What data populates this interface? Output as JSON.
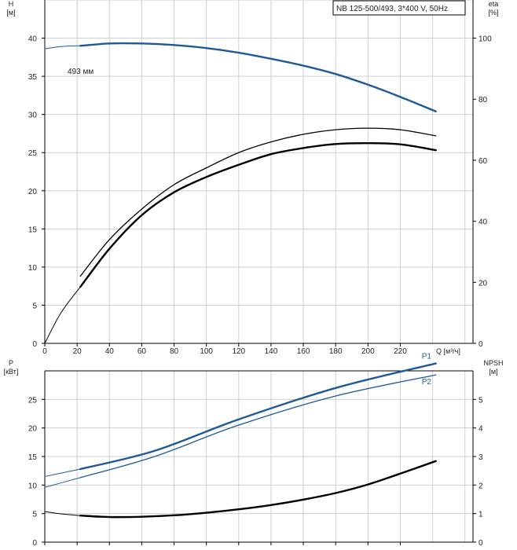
{
  "title_box": "NB 125-500/493, 3*400 V, 50Hz",
  "colors": {
    "blue": "#1f5a96",
    "black": "#000000",
    "grid": "#cfcfcf",
    "axis": "#000000"
  },
  "chart_data": [
    {
      "type": "line",
      "panel": "top",
      "left_axis": {
        "label": [
          "H",
          "[м]"
        ],
        "ylim": [
          0,
          45
        ],
        "ticks": [
          0,
          5,
          10,
          15,
          20,
          25,
          30,
          35,
          40
        ]
      },
      "right_axis": {
        "label": [
          "eta",
          "[%]"
        ],
        "ylim": [
          0,
          112.5
        ],
        "ticks": [
          0,
          20,
          40,
          60,
          80,
          100
        ]
      },
      "x_axis": {
        "label": "Q [м³/ч]",
        "xlim": [
          0,
          265
        ],
        "ticks": [
          0,
          20,
          40,
          60,
          80,
          100,
          120,
          140,
          160,
          180,
          200,
          220
        ]
      },
      "grid": true,
      "curve_label": "493 мм",
      "series": [
        {
          "id": "H_ext",
          "axis": "left",
          "color": "#1f5a96",
          "width": 1,
          "x": [
            0,
            10,
            22
          ],
          "y": [
            38.6,
            38.9,
            39.0
          ]
        },
        {
          "id": "H",
          "axis": "left",
          "color": "#1f5a96",
          "width": 2.4,
          "x": [
            22,
            40,
            60,
            80,
            100,
            120,
            140,
            160,
            180,
            200,
            220,
            242
          ],
          "y": [
            39.0,
            39.3,
            39.3,
            39.1,
            38.7,
            38.1,
            37.3,
            36.4,
            35.3,
            33.9,
            32.3,
            30.4
          ]
        },
        {
          "id": "eta_ext",
          "axis": "right",
          "color": "#000000",
          "width": 1,
          "x": [
            0,
            10,
            22
          ],
          "y": [
            0,
            10,
            18.5
          ]
        },
        {
          "id": "eta_thin",
          "axis": "right",
          "color": "#000000",
          "width": 1.3,
          "x": [
            22,
            40,
            60,
            80,
            100,
            120,
            140,
            160,
            180,
            200,
            220,
            242
          ],
          "y": [
            22,
            34,
            44,
            52,
            57.5,
            62.5,
            66,
            68.5,
            70,
            70.5,
            70,
            68
          ]
        },
        {
          "id": "eta_thick",
          "axis": "right",
          "color": "#000000",
          "width": 2.4,
          "x": [
            22,
            40,
            60,
            80,
            100,
            120,
            140,
            160,
            180,
            200,
            220,
            242
          ],
          "y": [
            18.5,
            31,
            42,
            49.5,
            54.5,
            58.5,
            62,
            64,
            65.3,
            65.6,
            65.2,
            63.3
          ]
        }
      ]
    },
    {
      "type": "line",
      "panel": "bottom",
      "left_axis": {
        "label": [
          "P",
          "[кВт]"
        ],
        "ylim": [
          0,
          30
        ],
        "ticks": [
          0,
          5,
          10,
          15,
          20,
          25
        ]
      },
      "right_axis": {
        "label": [
          "NPSH",
          "[м]"
        ],
        "ylim": [
          0,
          6
        ],
        "ticks": [
          0,
          1,
          2,
          3,
          4,
          5
        ]
      },
      "x_axis": {
        "xlim": [
          0,
          265
        ],
        "ticks": [
          0,
          20,
          40,
          60,
          80,
          100,
          120,
          140,
          160,
          180,
          200,
          220
        ]
      },
      "grid": true,
      "series": [
        {
          "id": "P1_ext",
          "axis": "left",
          "color": "#1f5a96",
          "width": 1,
          "x": [
            0,
            22
          ],
          "y": [
            11.5,
            12.8
          ]
        },
        {
          "id": "P1",
          "name": "P1",
          "axis": "left",
          "color": "#1f5a96",
          "width": 2.4,
          "x": [
            22,
            68,
            120,
            180,
            242
          ],
          "y": [
            12.8,
            16.0,
            21.5,
            27.0,
            31.3
          ]
        },
        {
          "id": "P2_ext",
          "axis": "left",
          "color": "#1f5a96",
          "width": 1,
          "x": [
            0,
            22
          ],
          "y": [
            9.6,
            11.3
          ]
        },
        {
          "id": "P2",
          "name": "P2",
          "axis": "left",
          "color": "#1f5a96",
          "width": 1.3,
          "x": [
            22,
            68,
            120,
            180,
            242
          ],
          "y": [
            11.3,
            15.0,
            20.5,
            25.6,
            29.3
          ]
        },
        {
          "id": "NPSH_ext",
          "axis": "right",
          "color": "#000000",
          "width": 1,
          "x": [
            0,
            10,
            22
          ],
          "y": [
            1.07,
            0.99,
            0.93
          ]
        },
        {
          "id": "NPSH",
          "axis": "right",
          "color": "#000000",
          "width": 2.4,
          "x": [
            22,
            40,
            60,
            80,
            100,
            120,
            140,
            160,
            180,
            200,
            220,
            242
          ],
          "y": [
            0.93,
            0.88,
            0.89,
            0.94,
            1.03,
            1.15,
            1.3,
            1.49,
            1.72,
            2.02,
            2.4,
            2.84
          ]
        }
      ]
    }
  ]
}
